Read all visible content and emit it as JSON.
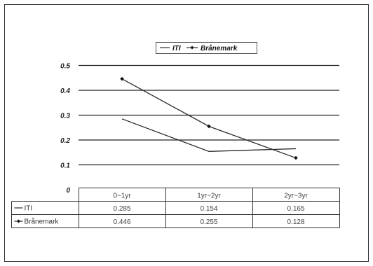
{
  "chart_data": {
    "type": "line",
    "title": "",
    "xlabel": "",
    "ylabel": "",
    "categories": [
      "0~1yr",
      "1yr~2yr",
      "2yr~3yr"
    ],
    "ylim": [
      0,
      0.5
    ],
    "yticks": [
      "0",
      "0.1",
      "0.2",
      "0.3",
      "0.4",
      "0.5"
    ],
    "grid": true,
    "legend_position": "top",
    "series": [
      {
        "name": "ITI",
        "values": [
          0.285,
          0.154,
          0.165
        ],
        "display": [
          "0.285",
          "0.154",
          "0.165"
        ],
        "marker": "none"
      },
      {
        "name": "Brånemark",
        "values": [
          0.446,
          0.255,
          0.128
        ],
        "display": [
          "0.446",
          "0.255",
          "0.128"
        ],
        "marker": "diamond"
      }
    ]
  }
}
